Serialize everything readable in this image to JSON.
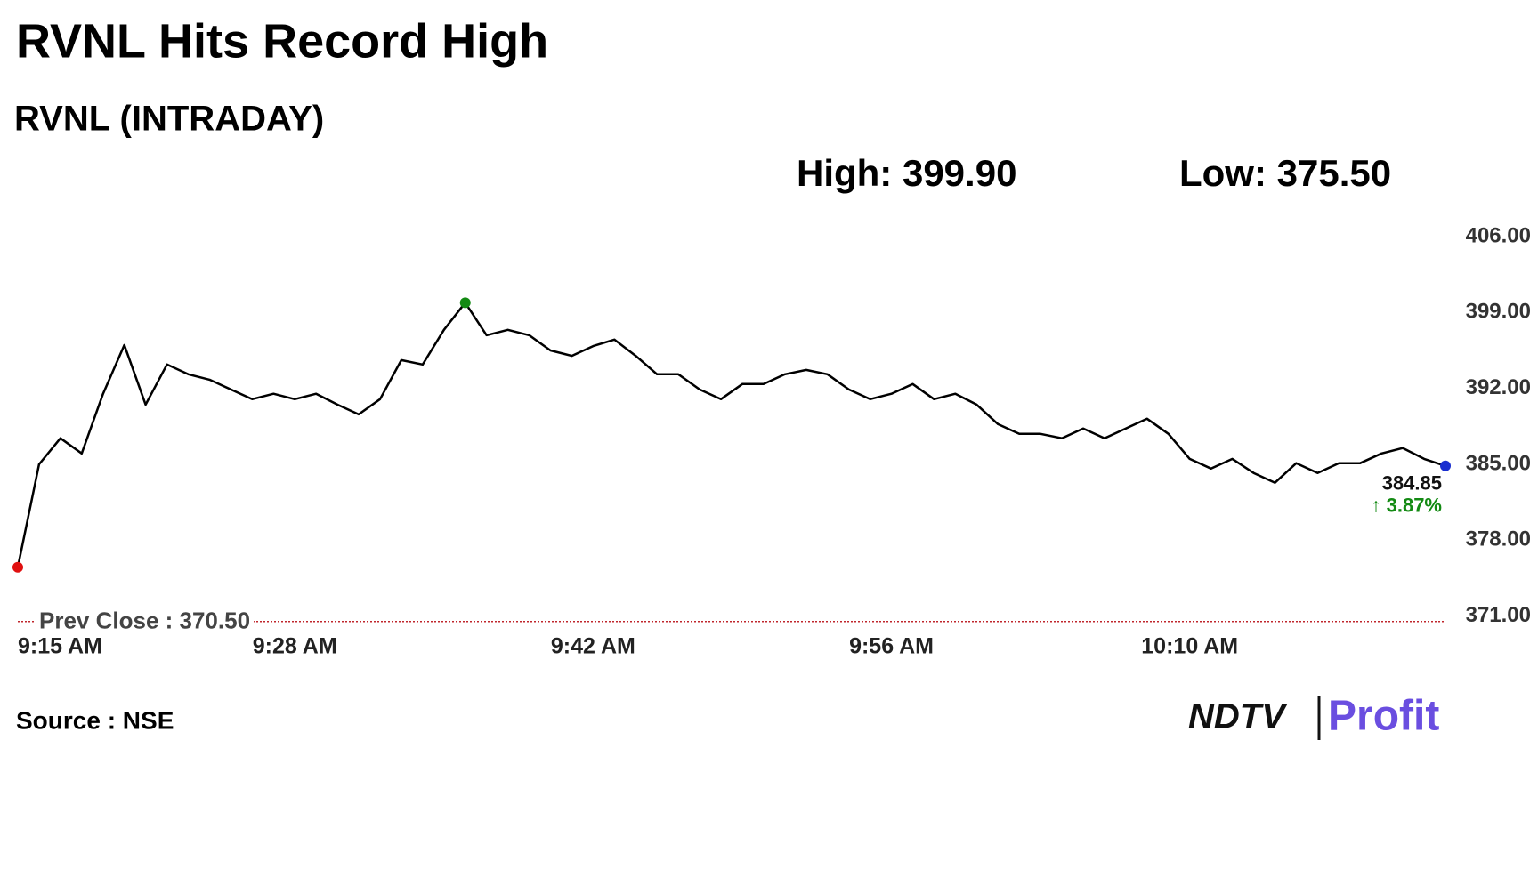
{
  "chart_data": {
    "type": "line",
    "title": "RVNL Hits Record High",
    "subtitle": "RVNL (INTRADAY)",
    "high_label": "High: 399.90",
    "low_label": "Low: 375.50",
    "x": [
      "9:15 AM",
      null,
      null,
      null,
      null,
      null,
      null,
      null,
      null,
      null,
      null,
      null,
      null,
      "9:28 AM",
      null,
      null,
      null,
      null,
      null,
      null,
      null,
      null,
      null,
      null,
      null,
      null,
      null,
      "9:42 AM",
      null,
      null,
      null,
      null,
      null,
      null,
      null,
      null,
      null,
      null,
      null,
      null,
      null,
      "9:56 AM",
      null,
      null,
      null,
      null,
      null,
      null,
      null,
      null,
      null,
      null,
      null,
      null,
      null,
      "10:10 AM",
      null,
      null,
      null,
      null,
      null,
      null,
      null,
      null,
      null,
      null,
      null,
      null
    ],
    "series": [
      {
        "name": "RVNL",
        "color": "#000000",
        "values": [
          375.5,
          385,
          387.4,
          386,
          391.5,
          396,
          390.5,
          394.2,
          393.3,
          392.8,
          391.9,
          391,
          391.5,
          391,
          391.5,
          390.5,
          389.6,
          391,
          394.6,
          394.2,
          397.4,
          399.9,
          396.9,
          397.4,
          396.9,
          395.5,
          395,
          395.9,
          396.5,
          395,
          393.3,
          393.3,
          391.9,
          391,
          392.4,
          392.4,
          393.3,
          393.7,
          393.3,
          391.9,
          391,
          391.5,
          392.4,
          391,
          391.5,
          390.5,
          388.7,
          387.8,
          387.8,
          387.4,
          388.3,
          387.4,
          388.3,
          389.2,
          387.8,
          385.5,
          384.6,
          385.5,
          384.2,
          383.3,
          385.1,
          384.2,
          385.1,
          385.1,
          386,
          386.5,
          385.5,
          384.85
        ]
      }
    ],
    "last_price": "384.85",
    "change": "↑ 3.87%",
    "change_color": "#138a13",
    "high_color": "#138a13",
    "low_color": "#e01010",
    "last_color": "#1a2fd0",
    "prev_close": 370.5,
    "prev_close_label": "Prev Close : 370.50",
    "prev_close_color": "#c0272d",
    "ylim": [
      370,
      408
    ],
    "yticks": [
      {
        "value": 371,
        "label": "371.00"
      },
      {
        "value": 378,
        "label": "378.00"
      },
      {
        "value": 385,
        "label": "385.00"
      },
      {
        "value": 392,
        "label": "392.00"
      },
      {
        "value": 399,
        "label": "399.00"
      },
      {
        "value": 406,
        "label": "406.00"
      }
    ],
    "source": "Source : NSE",
    "logo": {
      "brand": "NDTV",
      "product": "Profit"
    }
  }
}
